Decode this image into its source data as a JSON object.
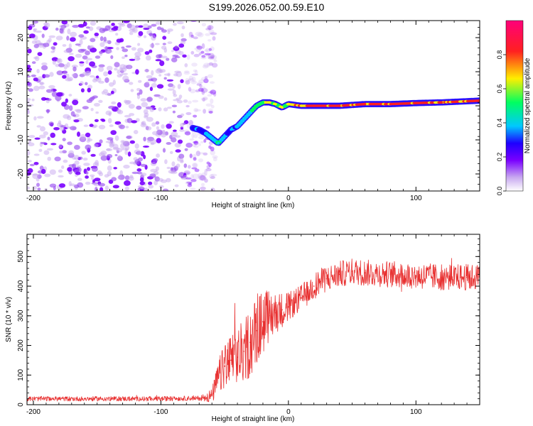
{
  "title": "S199.2026.052.00.59.E10",
  "colors": {
    "snr_line": "#e83030",
    "frame": "#000000",
    "colormap": [
      "#ffffff",
      "#c8a8f0",
      "#7a00ff",
      "#1e00ff",
      "#00c8ff",
      "#00ff60",
      "#ffee00",
      "#ff2020",
      "#ff007a"
    ]
  },
  "chart_data": [
    {
      "id": "spectrogram",
      "type": "heatmap",
      "xlabel": "Height of straight line (km)",
      "ylabel": "Frequency (Hz)",
      "xlim": [
        -205,
        150
      ],
      "ylim": [
        -25,
        25
      ],
      "xticks": [
        -200,
        -100,
        0,
        100
      ],
      "yticks": [
        -20,
        -10,
        0,
        10,
        20
      ],
      "colorbar": {
        "label": "Normalized spectral amplitude",
        "range": [
          0.0,
          1.0
        ],
        "ticks": [
          0.0,
          0.2,
          0.4,
          0.6,
          0.8
        ]
      },
      "noise_region_x": [
        -205,
        -65
      ],
      "ridge": {
        "x": [
          -75,
          -70,
          -65,
          -60,
          -55,
          -50,
          -45,
          -40,
          -35,
          -30,
          -25,
          -20,
          -15,
          -10,
          -5,
          0,
          10,
          20,
          40,
          60,
          80,
          100,
          120,
          150
        ],
        "freq": [
          -6.5,
          -7,
          -8,
          -9.5,
          -11,
          -9,
          -7,
          -6,
          -4,
          -2,
          0,
          1,
          1,
          0.5,
          -0.5,
          0.5,
          0,
          0,
          0,
          0.5,
          0.5,
          0.8,
          1,
          1.5
        ],
        "amplitude": [
          0.35,
          0.4,
          0.45,
          0.5,
          0.55,
          0.5,
          0.45,
          0.5,
          0.5,
          0.55,
          0.6,
          0.65,
          0.7,
          0.7,
          0.7,
          0.75,
          0.8,
          0.85,
          0.85,
          0.85,
          0.85,
          0.85,
          0.85,
          0.85
        ]
      }
    },
    {
      "id": "snr",
      "type": "line",
      "xlabel": "Height of straight line (km)",
      "ylabel": "SNR (10 * v/v)",
      "xlim": [
        -205,
        150
      ],
      "ylim": [
        0,
        575
      ],
      "xticks": [
        -200,
        -100,
        0,
        100
      ],
      "yticks": [
        0,
        100,
        200,
        300,
        400,
        500
      ],
      "series": [
        {
          "name": "SNR",
          "x": [
            -205,
            -150,
            -100,
            -70,
            -60,
            -55,
            -50,
            -45,
            -40,
            -35,
            -30,
            -25,
            -20,
            -15,
            -10,
            -5,
            0,
            5,
            10,
            15,
            20,
            25,
            30,
            40,
            50,
            60,
            80,
            100,
            120,
            140,
            150
          ],
          "y": [
            20,
            20,
            20,
            22,
            30,
            90,
            130,
            150,
            160,
            180,
            210,
            250,
            280,
            300,
            310,
            320,
            330,
            345,
            360,
            380,
            400,
            415,
            425,
            440,
            450,
            445,
            440,
            435,
            430,
            430,
            430
          ],
          "spread": [
            8,
            8,
            8,
            8,
            25,
            60,
            80,
            90,
            100,
            110,
            120,
            120,
            110,
            90,
            70,
            60,
            50,
            45,
            45,
            45,
            45,
            45,
            45,
            45,
            45,
            45,
            45,
            45,
            45,
            45,
            45
          ]
        }
      ]
    }
  ]
}
